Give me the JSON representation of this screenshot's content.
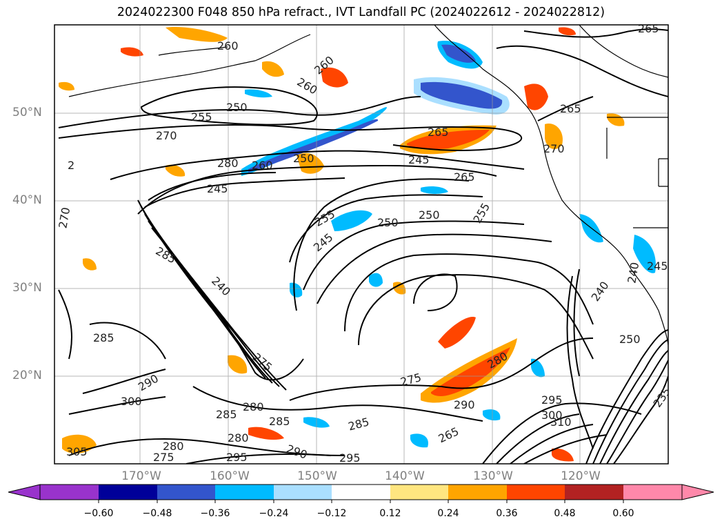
{
  "title": "2024022300 F048 850 hPa refract., IVT Landfall PC (2024022612 - 2024022812)",
  "lat_labels": [
    "50°N",
    "40°N",
    "30°N",
    "20°N"
  ],
  "lon_labels": [
    "170°W",
    "160°W",
    "150°W",
    "140°W",
    "130°W",
    "120°W"
  ],
  "colorbar": {
    "ticks": [
      "−0.60",
      "−0.48",
      "−0.36",
      "−0.24",
      "−0.12",
      "0.12",
      "0.24",
      "0.36",
      "0.48",
      "0.60"
    ],
    "colors": [
      "#9933cc",
      "#000099",
      "#3355cc",
      "#00bbff",
      "#aadfff",
      "#ffffff",
      "#ffe680",
      "#ffa500",
      "#ff4500",
      "#b22222",
      "#ff88aa"
    ]
  },
  "contour_labels": [
    "260",
    "260",
    "260",
    "265",
    "255",
    "250",
    "270",
    "265",
    "265",
    "280",
    "260",
    "250",
    "245",
    "265",
    "245",
    "270",
    "255",
    "250",
    "250",
    "255",
    "245",
    "285",
    "285",
    "240",
    "275",
    "280",
    "275",
    "285",
    "280",
    "285",
    "280",
    "290",
    "295",
    "295",
    "285",
    "305",
    "275",
    "280",
    "290",
    "300",
    "240",
    "250",
    "240",
    "245",
    "235",
    "290",
    "295",
    "300",
    "310",
    "265",
    "270",
    "2"
  ]
}
